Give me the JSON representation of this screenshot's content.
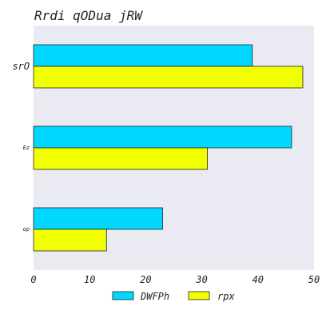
{
  "chart_data": {
    "type": "bar",
    "orientation": "horizontal",
    "title": "Rrdi qODua jRW",
    "categories": [
      "srO",
      "Ez",
      "op"
    ],
    "series": [
      {
        "name": "DWFPh",
        "color": "#00d8ff",
        "values": [
          39,
          46,
          23
        ]
      },
      {
        "name": "rpx",
        "color": "#f2ff00",
        "values": [
          48,
          31,
          13
        ]
      }
    ],
    "xlim": [
      0,
      50
    ],
    "xticks": [
      0,
      10,
      20,
      30,
      40,
      50
    ],
    "grid": false,
    "legend": "bottom-center",
    "plot_background": "#eaeaf2"
  }
}
